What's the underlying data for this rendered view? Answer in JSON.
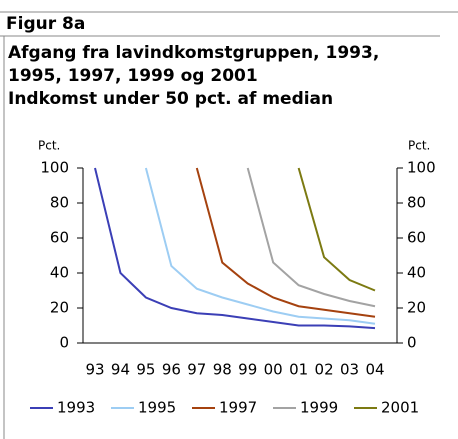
{
  "header": "Figur 8a",
  "chart_data": {
    "type": "line",
    "title": [
      "Afgang fra lavindkomstgruppen, 1993,",
      "1995, 1997, 1999 og 2001"
    ],
    "subtitle": "Indkomst under 50 pct. af median",
    "ylabel": "Pct.",
    "y2label": "Pct.",
    "categories": [
      "93",
      "94",
      "95",
      "96",
      "97",
      "98",
      "99",
      "00",
      "01",
      "02",
      "03",
      "04"
    ],
    "series": [
      {
        "name": "1993",
        "color": "#3b3fb6",
        "values": [
          100,
          40,
          26,
          20,
          17,
          16,
          14,
          12,
          10,
          10,
          9.5,
          8.5
        ]
      },
      {
        "name": "1995",
        "color": "#9dcdf3",
        "values": [
          null,
          null,
          100,
          44,
          31,
          26,
          22,
          18,
          15,
          14,
          13,
          11
        ]
      },
      {
        "name": "1997",
        "color": "#a5420f",
        "values": [
          null,
          null,
          null,
          null,
          100,
          46,
          34,
          26,
          21,
          19,
          17,
          15
        ]
      },
      {
        "name": "1999",
        "color": "#a3a3a3",
        "values": [
          null,
          null,
          null,
          null,
          null,
          null,
          100,
          46,
          33,
          28,
          24,
          21
        ]
      },
      {
        "name": "2001",
        "color": "#7c7a12",
        "values": [
          null,
          null,
          null,
          null,
          null,
          null,
          null,
          null,
          100,
          49,
          36,
          30
        ]
      }
    ],
    "ylim": [
      0,
      100
    ],
    "yticks": [
      0,
      20,
      40,
      60,
      80,
      100
    ],
    "y2lim": [
      0,
      100
    ],
    "y2ticks": [
      0,
      20,
      40,
      60,
      80,
      100
    ],
    "legend": "bottom"
  }
}
